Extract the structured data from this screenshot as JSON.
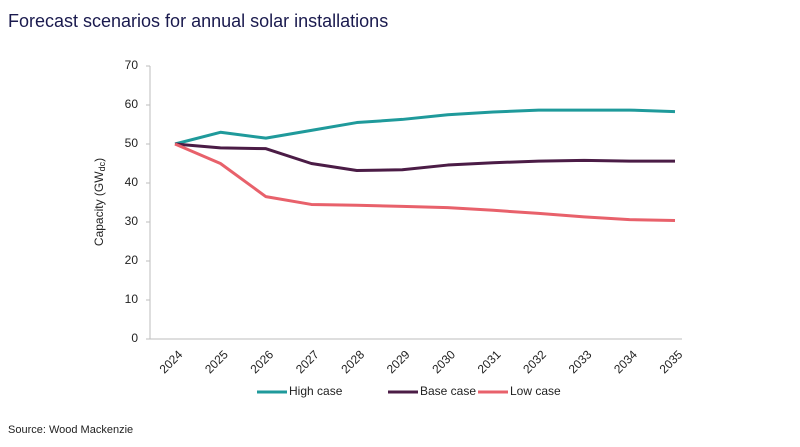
{
  "chart_data": {
    "type": "line",
    "title": "Forecast scenarios for annual solar installations",
    "y_label": {
      "text": "Capacity (GW",
      "subscript": "dc",
      "suffix": ")"
    },
    "source": "Source: Wood Mackenzie",
    "categories": [
      "2024",
      "2025",
      "2026",
      "2027",
      "2028",
      "2029",
      "2030",
      "2031",
      "2032",
      "2033",
      "2034",
      "2035"
    ],
    "series": [
      {
        "name": "High case",
        "color": "#1f9a9b",
        "values": [
          50,
          53,
          51.5,
          53.5,
          55.5,
          56.3,
          57.5,
          58.2,
          58.7,
          58.7,
          58.7,
          58.3
        ]
      },
      {
        "name": "Base case",
        "color": "#4b1c46",
        "values": [
          50,
          49,
          48.8,
          45,
          43.2,
          43.4,
          44.6,
          45.2,
          45.6,
          45.8,
          45.6,
          45.6
        ]
      },
      {
        "name": "Low case",
        "color": "#e8616b",
        "values": [
          50,
          45,
          36.5,
          34.5,
          34.3,
          34,
          33.7,
          33,
          32.2,
          31.3,
          30.6,
          30.4
        ]
      }
    ],
    "ylim": [
      0,
      70
    ],
    "yticks": [
      0,
      10,
      20,
      30,
      40,
      50,
      60,
      70
    ],
    "grid": false
  }
}
